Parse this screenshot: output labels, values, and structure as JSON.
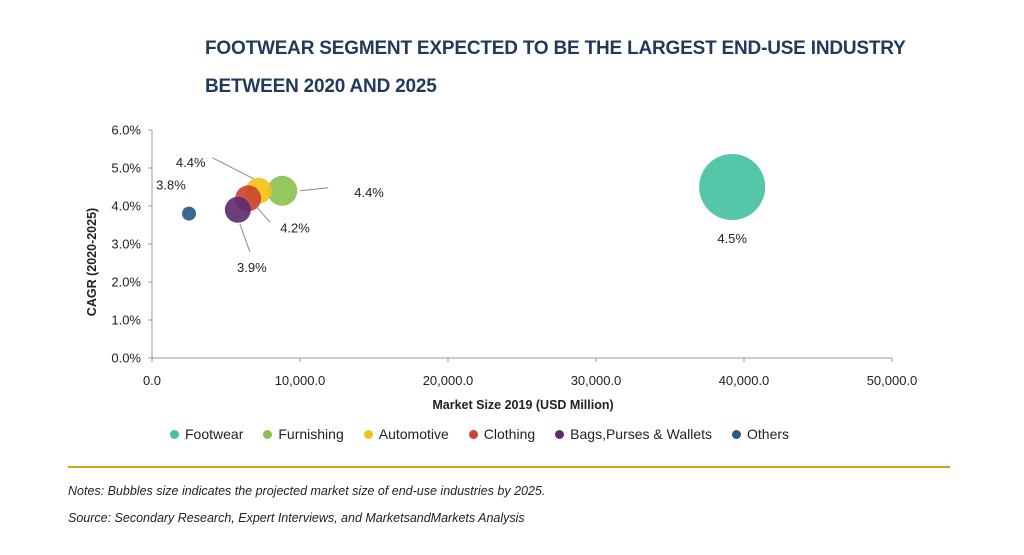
{
  "title": {
    "line1": "FOOTWEAR SEGMENT EXPECTED TO BE THE LARGEST END-USE INDUSTRY",
    "line2": "BETWEEN 2020 AND 2025"
  },
  "chart_data": {
    "type": "scatter",
    "subtype": "bubble",
    "xlabel": "Market Size 2019 (USD Million)",
    "ylabel": "CAGR (2020-2025)",
    "xlim": [
      0,
      50000
    ],
    "ylim": [
      0,
      6
    ],
    "x_ticks": [
      "0.0",
      "10,000.0",
      "20,000.0",
      "30,000.0",
      "40,000.0",
      "50,000.0"
    ],
    "y_ticks": [
      "0.0%",
      "1.0%",
      "2.0%",
      "3.0%",
      "4.0%",
      "5.0%",
      "6.0%"
    ],
    "grid": false,
    "legend_position": "bottom",
    "series": [
      {
        "name": "Footwear",
        "x": 39200,
        "y": 4.5,
        "size": 33,
        "color": "#47c1a0",
        "label": "4.5%"
      },
      {
        "name": "Furnishing",
        "x": 8800,
        "y": 4.4,
        "size": 15,
        "color": "#8cc152",
        "label": "4.4%"
      },
      {
        "name": "Automotive",
        "x": 7200,
        "y": 4.4,
        "size": 13,
        "color": "#f5c218",
        "label": "4.4%"
      },
      {
        "name": "Clothing",
        "x": 6500,
        "y": 4.2,
        "size": 13,
        "color": "#c9452f",
        "label": "4.2%"
      },
      {
        "name": "Bags,Purses & Wallets",
        "x": 5800,
        "y": 3.9,
        "size": 13,
        "color": "#5e2d6e",
        "label": "3.9%"
      },
      {
        "name": "Others",
        "x": 2500,
        "y": 3.8,
        "size": 7,
        "color": "#2a5b84",
        "label": "3.8%"
      }
    ]
  },
  "notes": {
    "bubbles": "Notes: Bubbles size indicates the projected market size of end-use industries by 2025.",
    "source": "Source: Secondary Research, Expert Interviews, and MarketsandMarkets Analysis"
  }
}
